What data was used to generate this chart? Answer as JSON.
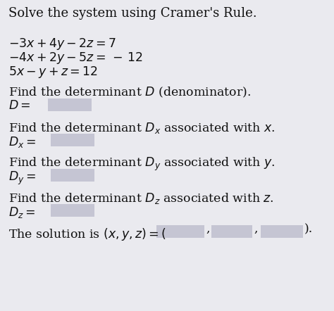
{
  "bg_color": "#eaeaef",
  "title": "Solve the system using Cramer's Rule.",
  "eq1": "$-3x + 4y - 2z = 7$",
  "eq2": "$-4x + 2y - 5z = \\,-\\, 12$",
  "eq3": "$5x - y + z = 12$",
  "sections": [
    {
      "label": "Find the determinant $D$ (denominator).",
      "var_label": "$D =$"
    },
    {
      "label": "Find the determinant $D_x$ associated with $x$.",
      "var_label": "$D_x =$"
    },
    {
      "label": "Find the determinant $D_y$ associated with $y$.",
      "var_label": "$D_y =$"
    },
    {
      "label": "Find the determinant $D_z$ associated with $z$.",
      "var_label": "$D_z =$"
    }
  ],
  "solution_text": "The solution is $(x, y, z) = ($",
  "box_color": "#c5c5d3",
  "text_color": "#111111",
  "fontsize": 12.5
}
